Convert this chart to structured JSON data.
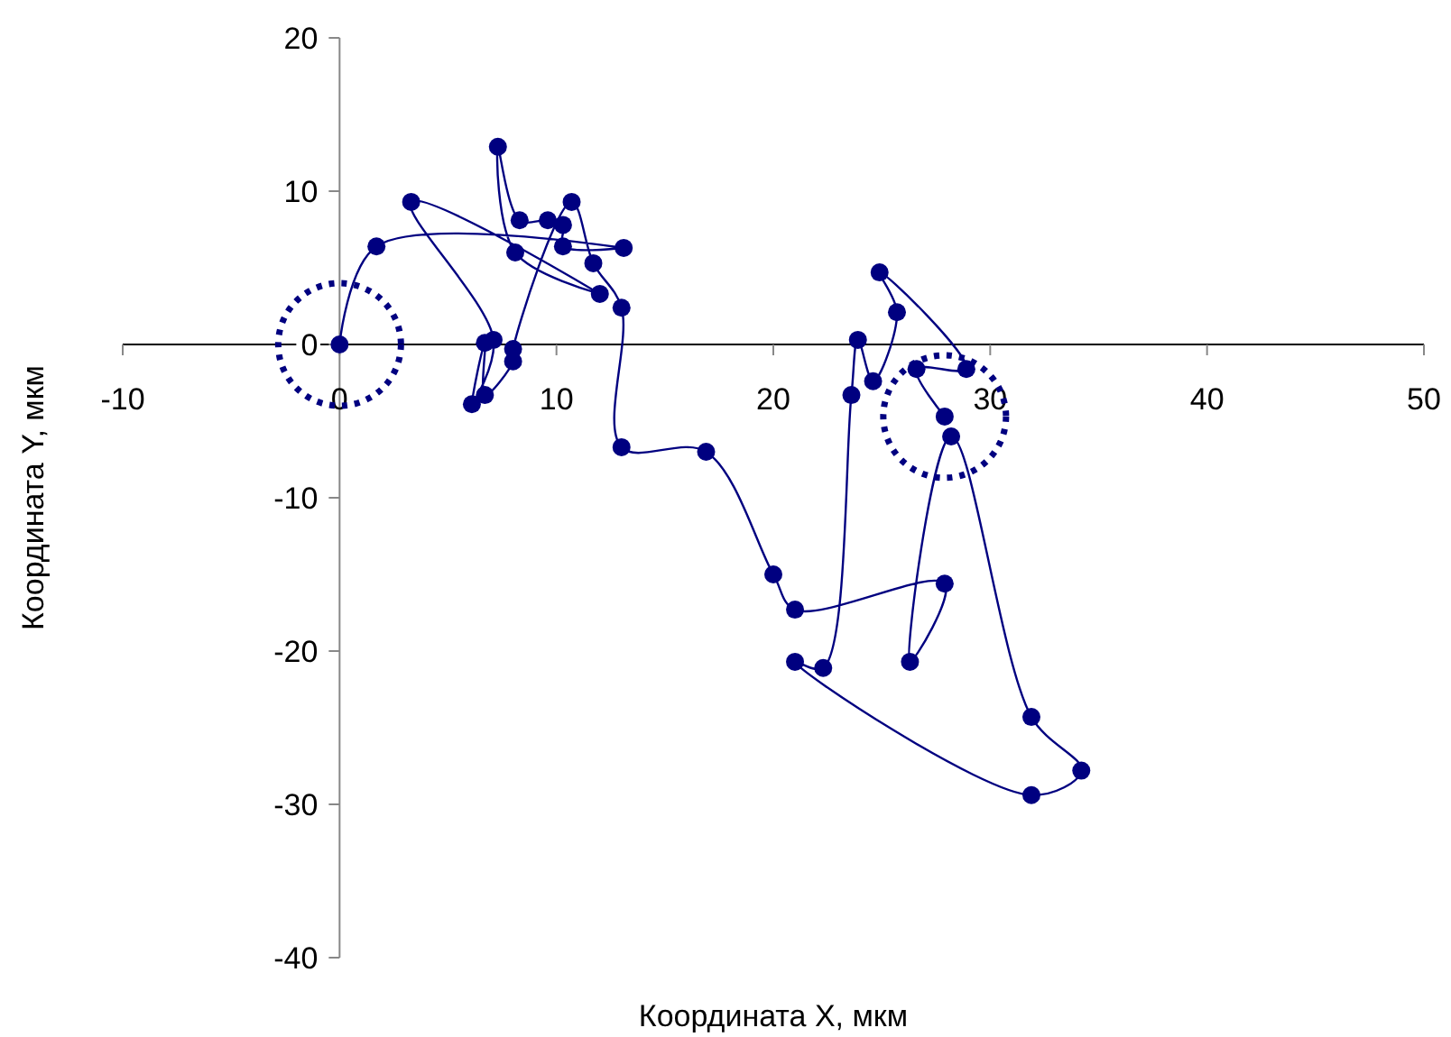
{
  "chart_data": {
    "type": "line",
    "xlabel": "Координата X, мкм",
    "ylabel": "Координата Y, мкм",
    "marker": "circle",
    "line_style": "solid",
    "grid": false,
    "xlim": [
      -10,
      50
    ],
    "xticks": [
      -10,
      0,
      10,
      20,
      30,
      40,
      50
    ],
    "ylim": [
      -40,
      20
    ],
    "yticks": [
      -40,
      -30,
      -20,
      -10,
      0,
      10,
      20
    ],
    "series": [
      {
        "color": "#000080",
        "x": [
          0,
          1.7,
          13.1,
          10.3,
          10.3,
          9.6,
          8.3,
          7.3,
          8.1,
          12.0,
          3.3,
          7.1,
          6.1,
          6.7,
          6.7,
          8.0,
          8.0,
          10.7,
          11.7,
          13.0,
          13.0,
          16.9,
          20.0,
          21.0,
          27.9,
          26.3,
          28.2,
          31.9,
          34.2,
          31.9,
          21.0,
          22.3,
          23.6,
          23.9,
          24.6,
          25.7,
          24.9,
          28.9,
          26.6,
          27.9
        ],
        "values": [
          0,
          6.4,
          6.3,
          6.4,
          7.8,
          8.1,
          8.1,
          12.9,
          6.0,
          3.3,
          9.3,
          0.3,
          -3.9,
          0.1,
          -3.3,
          -1.1,
          -0.3,
          9.3,
          5.3,
          2.4,
          -6.7,
          -7.0,
          -15.0,
          -17.3,
          -15.6,
          -20.7,
          -6.0,
          -24.3,
          -27.8,
          -29.4,
          -20.7,
          -21.1,
          -3.3,
          0.3,
          -2.4,
          2.1,
          4.7,
          -1.6,
          -1.6,
          -4.7
        ]
      }
    ]
  }
}
